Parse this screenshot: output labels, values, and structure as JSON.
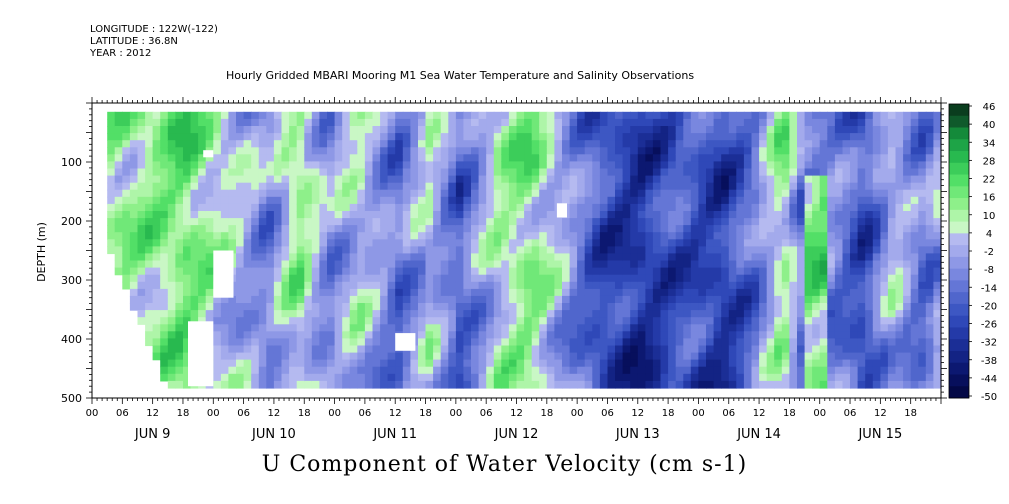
{
  "header": {
    "longitude": "LONGITUDE : 122W(-122)",
    "latitude": "LATITUDE : 36.8N",
    "year": "YEAR : 2012",
    "title": "Hourly Gridded MBARI Mooring M1 Sea Water Temperature and Salinity Observations"
  },
  "chart_data": {
    "type": "heatmap",
    "title": "Hourly Gridded MBARI Mooring M1 Sea Water Temperature and Salinity Observations",
    "variable": "U Component of Water Velocity (cm s-1)",
    "xlabel": "",
    "ylabel": "DEPTH (m)",
    "ylim": [
      500,
      0
    ],
    "y_ticks": [
      100,
      200,
      300,
      400,
      500
    ],
    "x_range_hours": [
      0,
      168
    ],
    "x_hour_tick_labels": [
      "00",
      "06",
      "12",
      "18",
      "00",
      "06",
      "12",
      "18",
      "00",
      "06",
      "12",
      "18",
      "00",
      "06",
      "12",
      "18",
      "00",
      "06",
      "12",
      "18",
      "00",
      "06",
      "12",
      "18",
      "00",
      "06",
      "12",
      "18"
    ],
    "x_day_labels": [
      "JUN 9",
      "JUN 10",
      "JUN 11",
      "JUN 12",
      "JUN 13",
      "JUN 14",
      "JUN 15"
    ],
    "colorbar": {
      "labels": [
        46,
        40,
        34,
        28,
        22,
        16,
        10,
        4,
        -2,
        -8,
        -14,
        -20,
        -26,
        -32,
        -38,
        -44,
        -50
      ],
      "colors": [
        "#0a3d1e",
        "#0f5a2b",
        "#148a3a",
        "#1ea447",
        "#28b94f",
        "#3ccd5a",
        "#52df67",
        "#70e878",
        "#8ef08a",
        "#aef5a8",
        "#c9f7c5",
        "#b5baf0",
        "#a3aaec",
        "#8e98e6",
        "#7987df",
        "#6476d6",
        "#5066cc",
        "#3d57c3",
        "#2f48b8",
        "#243aa8",
        "#1b2e96",
        "#132384",
        "#0c1871",
        "#070f5c",
        "#030846"
      ],
      "value_range": [
        -50,
        52
      ]
    },
    "field_description": "Alternating positive (green) and negative (blue) velocity bands across Jun 9-15 2012, strongest negative Jun 13-14, strongest positive near Jun 14 18h at depth."
  }
}
